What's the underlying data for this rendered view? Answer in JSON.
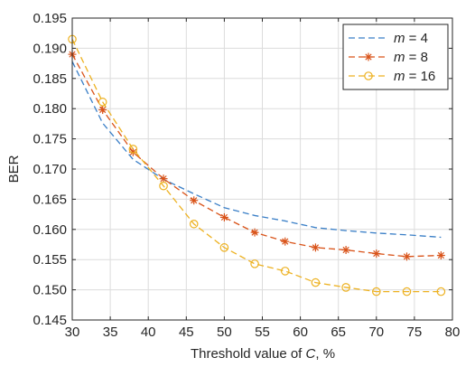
{
  "chart_data": {
    "type": "line",
    "xlabel_prefix": "Threshold value of ",
    "xlabel_var": "C",
    "xlabel_suffix": ", %",
    "ylabel": "BER",
    "xlim": [
      30,
      80
    ],
    "ylim": [
      0.145,
      0.195
    ],
    "xticks": [
      "30",
      "35",
      "40",
      "45",
      "50",
      "55",
      "60",
      "65",
      "70",
      "75",
      "80"
    ],
    "yticks": [
      "0.145",
      "0.150",
      "0.155",
      "0.160",
      "0.165",
      "0.170",
      "0.175",
      "0.180",
      "0.185",
      "0.190",
      "0.195"
    ],
    "grid": true,
    "legend_position": "top-right",
    "series": [
      {
        "name_var": "m",
        "name_value": "= 4",
        "color": "#3a7fc7",
        "marker": "none",
        "x": [
          30,
          34,
          38,
          42,
          46,
          50,
          54,
          58,
          62,
          66,
          70,
          74,
          78.5
        ],
        "y": [
          0.1878,
          0.1776,
          0.1716,
          0.1683,
          0.1659,
          0.1636,
          0.1623,
          0.1614,
          0.1603,
          0.1598,
          0.1594,
          0.1591,
          0.1587
        ]
      },
      {
        "name_var": "m",
        "name_value": "= 8",
        "color": "#d95319",
        "marker": "asterisk",
        "x": [
          30,
          34,
          38,
          42,
          46,
          50,
          54,
          58,
          62,
          66,
          70,
          74,
          78.5
        ],
        "y": [
          0.189,
          0.1798,
          0.1728,
          0.1684,
          0.1648,
          0.162,
          0.1595,
          0.158,
          0.157,
          0.1566,
          0.156,
          0.1555,
          0.1557
        ]
      },
      {
        "name_var": "m",
        "name_value": "= 16",
        "color": "#edb120",
        "marker": "circle",
        "x": [
          30,
          34,
          38,
          42,
          46,
          50,
          54,
          58,
          62,
          66,
          70,
          74,
          78.5
        ],
        "y": [
          0.1915,
          0.1811,
          0.1733,
          0.1672,
          0.1609,
          0.157,
          0.1543,
          0.1531,
          0.1512,
          0.1504,
          0.1497,
          0.1497,
          0.1497
        ]
      }
    ]
  }
}
